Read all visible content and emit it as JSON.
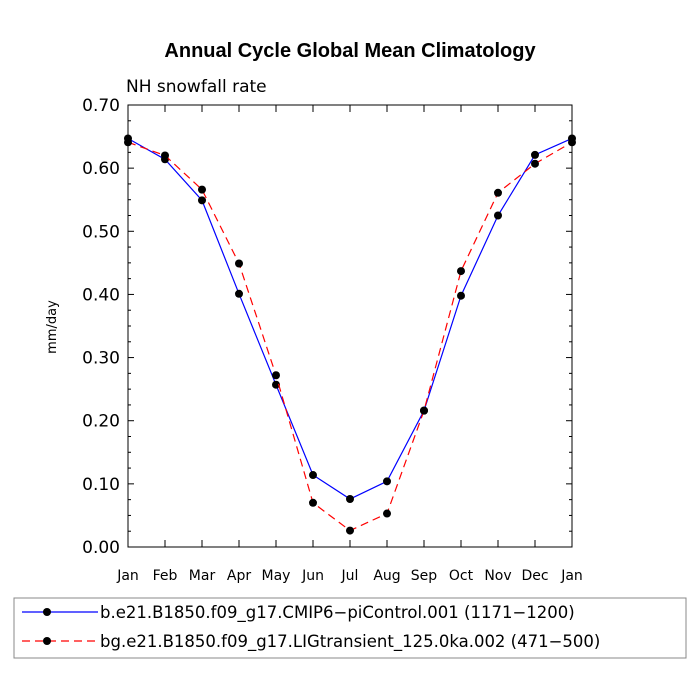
{
  "chart_data": {
    "type": "line",
    "title": "Annual Cycle Global Mean Climatology",
    "subtitle": "NH snowfall rate",
    "xlabel": "",
    "ylabel": "mm/day",
    "categories": [
      "Jan",
      "Feb",
      "Mar",
      "Apr",
      "May",
      "Jun",
      "Jul",
      "Aug",
      "Sep",
      "Oct",
      "Nov",
      "Dec",
      "Jan"
    ],
    "ylim": [
      0,
      0.7
    ],
    "yticks": [
      "0.00",
      "0.10",
      "0.20",
      "0.30",
      "0.40",
      "0.50",
      "0.60",
      "0.70"
    ],
    "grid": false,
    "legend_position": "bottom",
    "series": [
      {
        "name": "b.e21.B1850.f09_g17.CMIP6−piControl.001 (1171−1200)",
        "color": "#0000ff",
        "dash": "solid",
        "marker": "circle",
        "values": [
          0.647,
          0.614,
          0.549,
          0.401,
          0.257,
          0.114,
          0.076,
          0.104,
          0.216,
          0.398,
          0.525,
          0.621,
          0.647
        ]
      },
      {
        "name": "bg.e21.B1850.f09_g17.LIGtransient_125.0ka.002 (471−500)",
        "color": "#ff0000",
        "dash": "dashed",
        "marker": "circle",
        "values": [
          0.641,
          0.62,
          0.566,
          0.449,
          0.272,
          0.07,
          0.026,
          0.053,
          0.216,
          0.437,
          0.561,
          0.607,
          0.641
        ]
      }
    ]
  }
}
